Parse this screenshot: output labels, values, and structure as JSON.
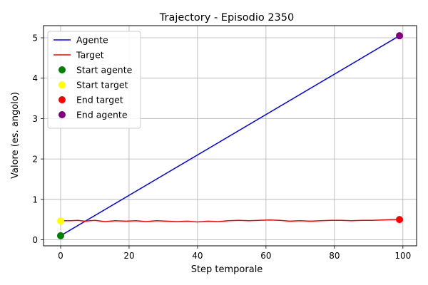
{
  "chart_data": {
    "type": "line",
    "title": "Trajectory - Episodio 2350",
    "xlabel": "Step temporale",
    "ylabel": "Valore (es. angolo)",
    "xlim": [
      -5,
      104
    ],
    "ylim": [
      -0.15,
      5.3
    ],
    "xticks": [
      0,
      20,
      40,
      60,
      80,
      100
    ],
    "yticks": [
      0,
      1,
      2,
      3,
      4,
      5
    ],
    "grid": true,
    "legend_position": "top-left",
    "series": [
      {
        "name": "Agente",
        "kind": "line",
        "color": "#0000ff",
        "x": [
          0,
          99
        ],
        "y": [
          0.1,
          5.05
        ]
      },
      {
        "name": "Target",
        "kind": "line",
        "color": "#ff0000",
        "x": [
          0,
          3,
          5,
          7,
          10,
          13,
          16,
          19,
          22,
          25,
          28,
          31,
          34,
          37,
          40,
          43,
          46,
          49,
          52,
          55,
          58,
          61,
          64,
          67,
          70,
          73,
          76,
          79,
          82,
          85,
          88,
          91,
          94,
          97,
          99
        ],
        "y": [
          0.47,
          0.47,
          0.48,
          0.46,
          0.48,
          0.45,
          0.47,
          0.46,
          0.47,
          0.45,
          0.47,
          0.46,
          0.45,
          0.46,
          0.44,
          0.46,
          0.45,
          0.47,
          0.48,
          0.47,
          0.48,
          0.49,
          0.48,
          0.46,
          0.47,
          0.46,
          0.47,
          0.48,
          0.48,
          0.47,
          0.48,
          0.48,
          0.49,
          0.5,
          0.5
        ]
      },
      {
        "name": "Start agente",
        "kind": "scatter",
        "color": "#008000",
        "x": [
          0
        ],
        "y": [
          0.1
        ]
      },
      {
        "name": "Start target",
        "kind": "scatter",
        "color": "#ffff00",
        "x": [
          0
        ],
        "y": [
          0.47
        ]
      },
      {
        "name": "End target",
        "kind": "scatter",
        "color": "#ff0000",
        "x": [
          99
        ],
        "y": [
          0.5
        ]
      },
      {
        "name": "End agente",
        "kind": "scatter",
        "color": "#800080",
        "x": [
          99
        ],
        "y": [
          5.05
        ]
      }
    ]
  }
}
